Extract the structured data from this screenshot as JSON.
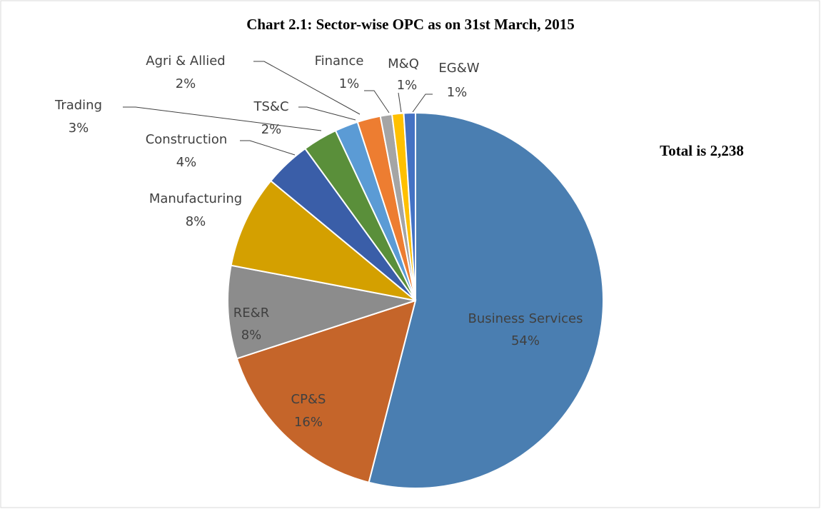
{
  "chart_data": {
    "type": "pie",
    "title": "Chart 2.1: Sector-wise OPC as on 31st March, 2015",
    "annotation": "Total is 2,238",
    "categories": [
      "Business Services",
      "CP&S",
      "RE&R",
      "Manufacturing",
      "Construction",
      "Trading",
      "TS&C",
      "Agri & Allied",
      "Finance",
      "M&Q",
      "EG&W"
    ],
    "values": [
      54,
      16,
      8,
      8,
      4,
      3,
      2,
      2,
      1,
      1,
      1
    ],
    "value_labels": [
      "54%",
      "16%",
      "8%",
      "8%",
      "4%",
      "3%",
      "2%",
      "2%",
      "1%",
      "1%",
      "1%"
    ],
    "colors": [
      "#4a7eb1",
      "#c5652a",
      "#8c8c8c",
      "#d4a000",
      "#3a5ea8",
      "#5a8f3a",
      "#5b9bd5",
      "#ed7d31",
      "#a5a5a5",
      "#ffc000",
      "#4472c4"
    ]
  }
}
